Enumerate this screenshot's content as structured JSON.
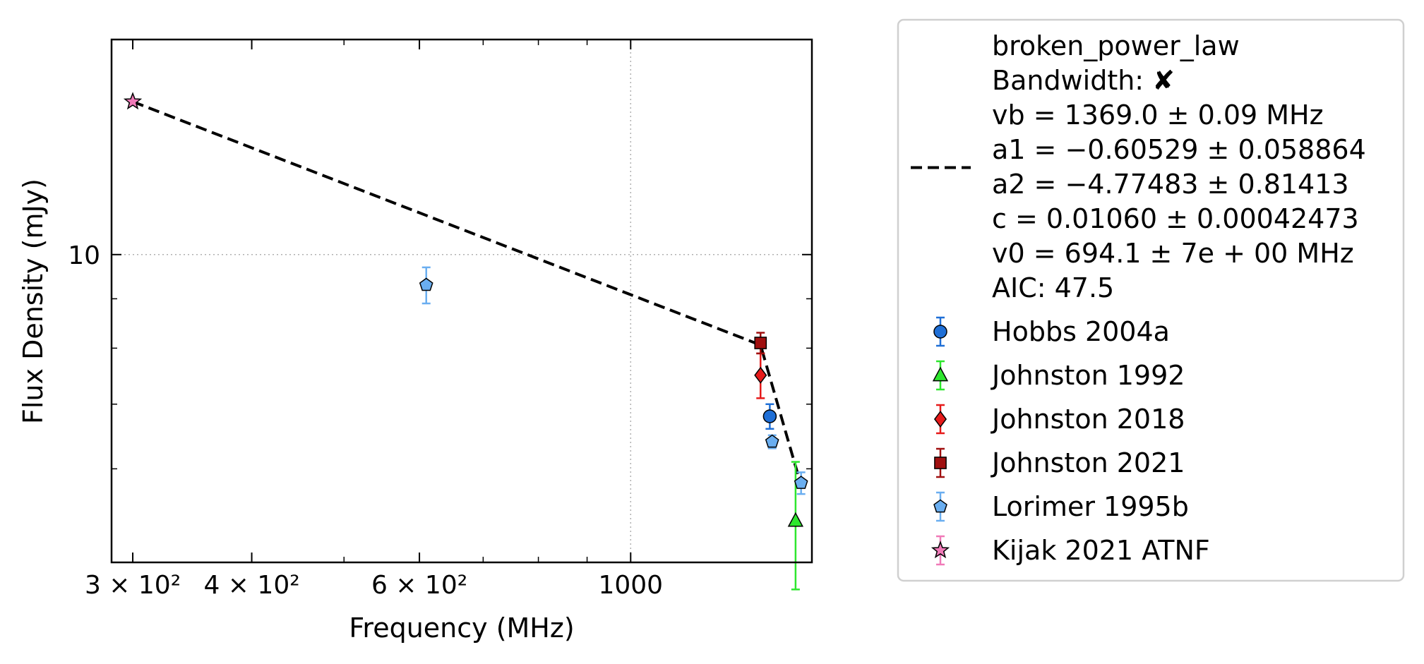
{
  "chart_data": {
    "type": "scatter",
    "xlabel": "Frequency (MHz)",
    "ylabel": "Flux Density (mJy)",
    "x_scale": "log",
    "y_scale": "log",
    "xlim": [
      285,
      1550
    ],
    "ylim": [
      4.8,
      16.7
    ],
    "grid": true,
    "legend_position": "outside-right",
    "x_ticks": [
      {
        "value": 300,
        "label": "3 × 10²"
      },
      {
        "value": 400,
        "label": "4 × 10²"
      },
      {
        "value": 600,
        "label": "6 × 10²"
      },
      {
        "value": 1000,
        "label": "1000"
      }
    ],
    "x_minor_ticks": [
      500,
      700,
      800,
      900
    ],
    "y_ticks": [
      {
        "value": 10,
        "label": "10"
      }
    ],
    "y_minor_ticks": [
      6,
      7,
      8,
      9
    ],
    "fit": {
      "model": "broken_power_law",
      "line_style": "dashed",
      "color": "#000000",
      "points": [
        [
          300,
          14.4
        ],
        [
          1369,
          8.06
        ],
        [
          1500,
          5.9
        ]
      ],
      "legend_lines": [
        "broken_power_law",
        "Bandwidth: ✘",
        "vb = 1369.0 ± 0.09 MHz",
        "a1 = −0.60529 ± 0.058864",
        "a2 = −4.77483 ± 0.81413",
        "c = 0.01060 ± 0.00042473",
        "v0 = 694.1 ± 7e + 00 MHz",
        "AIC: 47.5"
      ]
    },
    "series": [
      {
        "name": "Hobbs 2004a",
        "marker": "circle",
        "color": "#1f6fd6",
        "points": [
          {
            "x": 1400,
            "y": 6.8,
            "yerr": 0.2
          }
        ]
      },
      {
        "name": "Johnston 1992",
        "marker": "triangle",
        "color": "#2ee62e",
        "points": [
          {
            "x": 1490,
            "y": 5.3,
            "yerr": 0.8
          }
        ]
      },
      {
        "name": "Johnston 2018",
        "marker": "diamond",
        "color": "#e61a1a",
        "points": [
          {
            "x": 1369,
            "y": 7.5,
            "yerr": 0.4
          }
        ]
      },
      {
        "name": "Johnston 2021",
        "marker": "square",
        "color": "#a01010",
        "points": [
          {
            "x": 1369,
            "y": 8.1,
            "yerr": 0.2
          }
        ]
      },
      {
        "name": "Lorimer 1995b",
        "marker": "pentagon",
        "color": "#6aaef0",
        "points": [
          {
            "x": 610,
            "y": 9.3,
            "yerr": 0.4
          },
          {
            "x": 1408,
            "y": 6.4,
            "yerr": 0.1
          },
          {
            "x": 1510,
            "y": 5.8,
            "yerr": 0.15
          }
        ]
      },
      {
        "name": "Kijak 2021 ATNF",
        "marker": "star",
        "color": "#f07ab8",
        "points": [
          {
            "x": 300,
            "y": 14.4
          }
        ]
      }
    ]
  }
}
